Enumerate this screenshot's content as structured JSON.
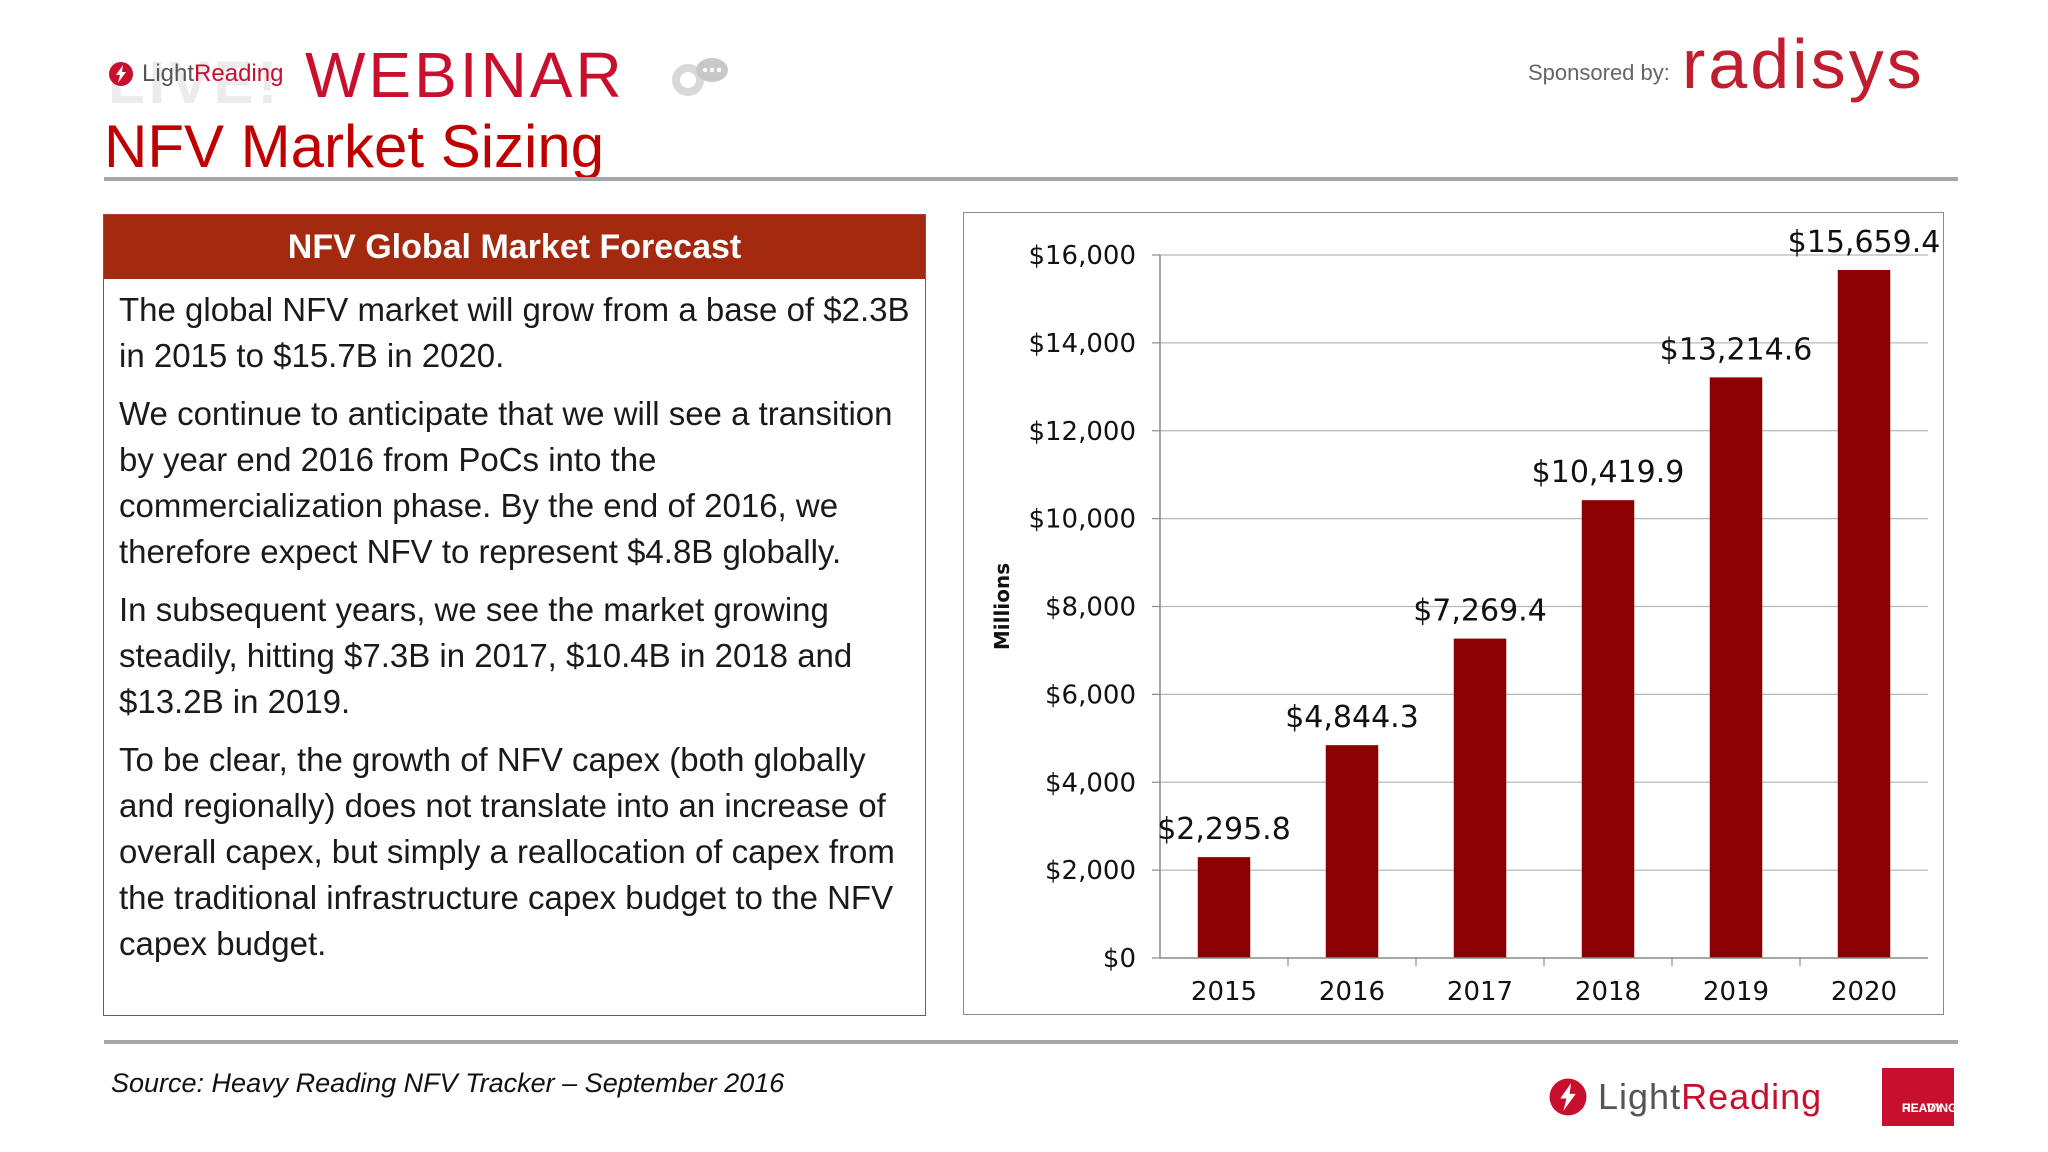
{
  "header": {
    "live_text": "LIVE!",
    "lightreading_prefix": "Light",
    "lightreading_suffix": "Reading",
    "webinar_text": "WEBINAR",
    "sponsor_label": "Sponsored by:",
    "sponsor_name": "radisys"
  },
  "slide": {
    "title": "NFV Market Sizing"
  },
  "left_panel": {
    "heading": "NFV Global Market Forecast",
    "paragraphs": [
      "The global NFV market will grow from a base of $2.3B in 2015 to $15.7B in 2020.",
      "We continue to anticipate that we will see a transition by year end 2016 from PoCs into the commercialization phase. By the end of 2016, we therefore expect NFV to represent $4.8B globally.",
      "In subsequent years, we see the market growing steadily, hitting $7.3B in 2017, $10.4B in 2018 and $13.2B in 2019.",
      "To be clear, the growth of NFV capex (both globally and regionally) does not translate into an increase of overall capex, but simply a reallocation of capex from the traditional infrastructure capex budget to the NFV capex budget."
    ]
  },
  "chart_data": {
    "type": "bar",
    "categories": [
      "2015",
      "2016",
      "2017",
      "2018",
      "2019",
      "2020"
    ],
    "values": [
      2295.8,
      4844.3,
      7269.4,
      10419.9,
      13214.6,
      15659.4
    ],
    "data_labels": [
      "$2,295.8",
      "$4,844.3",
      "$7,269.4",
      "$10,419.9",
      "$13,214.6",
      "$15,659.4"
    ],
    "ylabel": "Millions",
    "xlabel": "",
    "ylim": [
      0,
      16000
    ],
    "yticks": [
      0,
      2000,
      4000,
      6000,
      8000,
      10000,
      12000,
      14000,
      16000
    ],
    "ytick_labels": [
      "$0",
      "$2,000",
      "$4,000",
      "$6,000",
      "$8,000",
      "$10,000",
      "$12,000",
      "$14,000",
      "$16,000"
    ],
    "grid": true,
    "bar_color": "#8b0000"
  },
  "footer": {
    "source": "Source: Heavy Reading NFV Tracker – September 2016",
    "lightreading_prefix": "Light",
    "lightreading_suffix": "Reading",
    "heavy_line1": "HEAVY",
    "heavy_line2": "READING"
  },
  "colors": {
    "accent": "#c8102e",
    "title": "#c00000",
    "panel_header": "#a3290f"
  }
}
